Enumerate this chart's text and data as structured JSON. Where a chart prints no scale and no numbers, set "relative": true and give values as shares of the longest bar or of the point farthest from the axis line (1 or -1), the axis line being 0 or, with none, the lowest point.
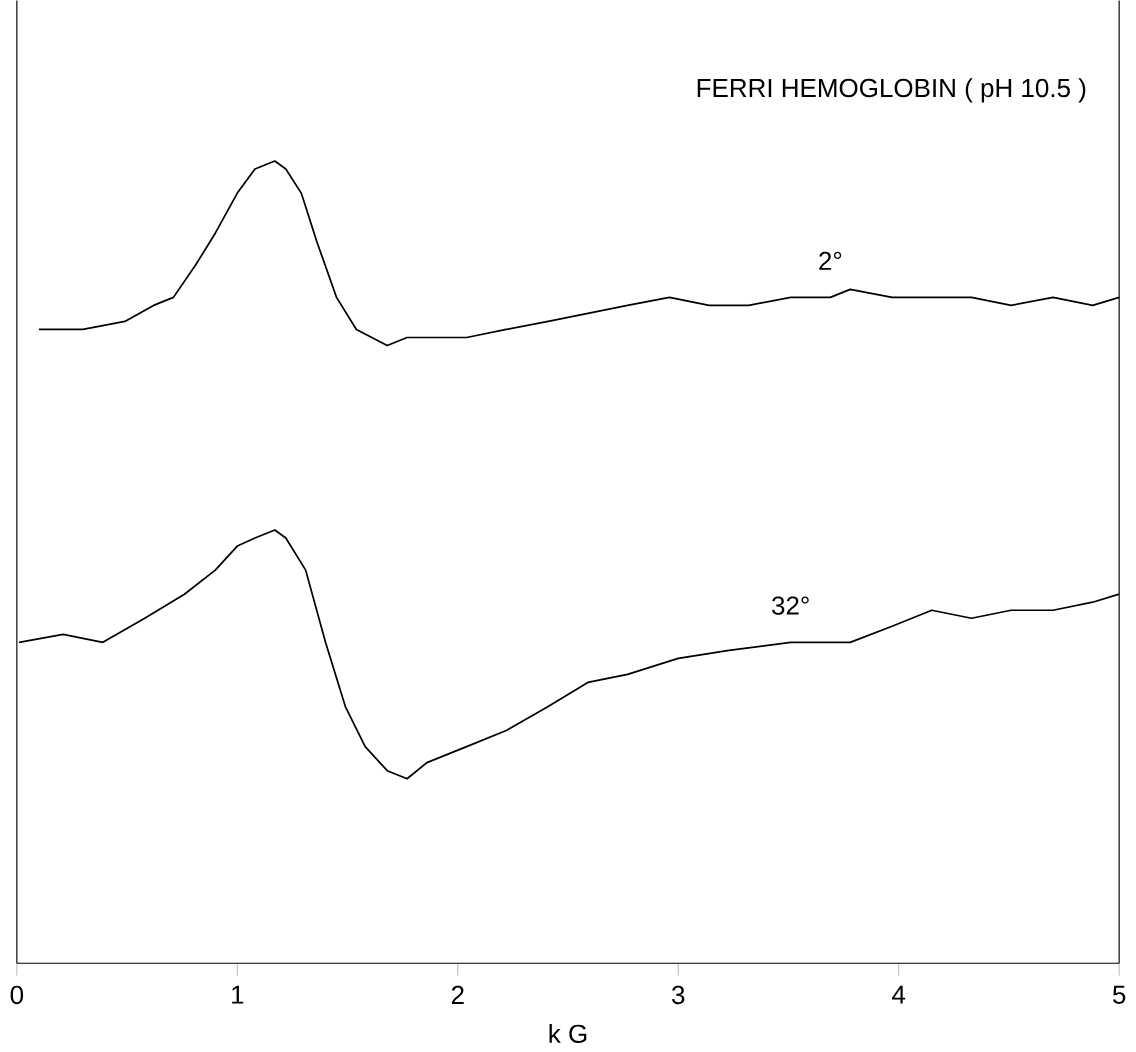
{
  "chart_data": {
    "type": "line",
    "title": "FERRI HEMOGLOBIN ( pH 10.5 )",
    "xlabel": "k G",
    "relative": true,
    "xlim": [
      0,
      5
    ],
    "xticks": [
      0,
      1,
      2,
      3,
      4,
      5
    ],
    "tick_labels": "x",
    "marker": "none",
    "line_style": "solid",
    "grid": false,
    "series": [
      {
        "name": "2°",
        "color": "#000000",
        "x": [
          0.1,
          0.3,
          0.49,
          0.62,
          0.71,
          0.81,
          0.9,
          1.0,
          1.08,
          1.17,
          1.22,
          1.29,
          1.36,
          1.45,
          1.54,
          1.68,
          1.77,
          1.9,
          2.04,
          2.22,
          2.41,
          2.59,
          2.77,
          2.96,
          3.14,
          3.32,
          3.51,
          3.69,
          3.78,
          3.97,
          4.15,
          4.33,
          4.51,
          4.7,
          4.88,
          5.0
        ],
        "values": [
          0.79,
          0.79,
          0.8,
          0.82,
          0.83,
          0.87,
          0.91,
          0.96,
          0.99,
          1.0,
          0.99,
          0.96,
          0.9,
          0.83,
          0.79,
          0.77,
          0.78,
          0.78,
          0.78,
          0.79,
          0.8,
          0.81,
          0.82,
          0.83,
          0.82,
          0.82,
          0.83,
          0.83,
          0.84,
          0.83,
          0.83,
          0.83,
          0.82,
          0.83,
          0.82,
          0.83
        ]
      },
      {
        "name": "32°",
        "color": "#000000",
        "x": [
          0.01,
          0.21,
          0.39,
          0.58,
          0.76,
          0.9,
          1.0,
          1.08,
          1.17,
          1.22,
          1.31,
          1.4,
          1.49,
          1.58,
          1.68,
          1.77,
          1.86,
          2.04,
          2.22,
          2.41,
          2.59,
          2.77,
          3.0,
          3.23,
          3.51,
          3.78,
          3.97,
          4.15,
          4.33,
          4.51,
          4.7,
          4.88,
          5.0
        ],
        "values": [
          0.4,
          0.41,
          0.4,
          0.43,
          0.46,
          0.49,
          0.52,
          0.53,
          0.54,
          0.53,
          0.49,
          0.4,
          0.32,
          0.27,
          0.24,
          0.23,
          0.25,
          0.27,
          0.29,
          0.32,
          0.35,
          0.36,
          0.38,
          0.39,
          0.4,
          0.4,
          0.42,
          0.44,
          0.43,
          0.44,
          0.44,
          0.45,
          0.46
        ]
      }
    ]
  }
}
